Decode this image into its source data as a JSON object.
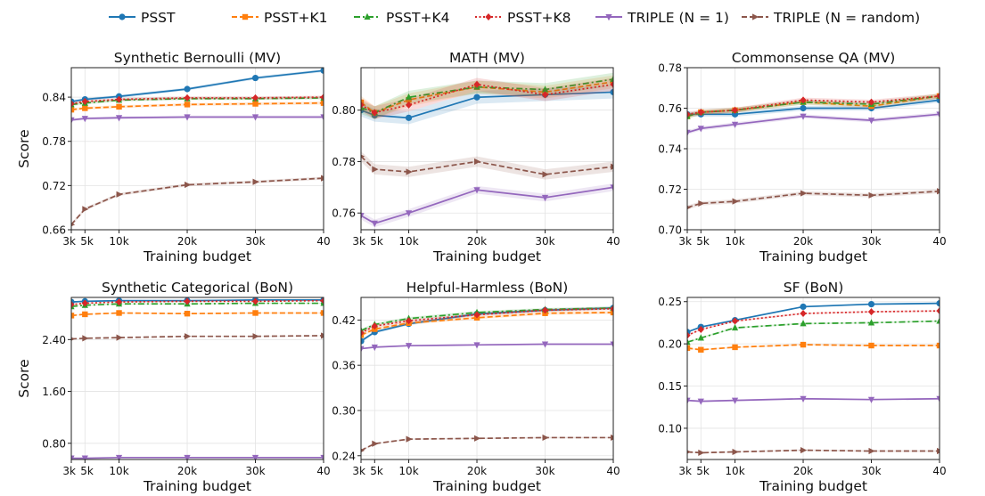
{
  "legend": [
    {
      "label": "PSST",
      "color": "#1f77b4",
      "dash": "solid",
      "marker": "circle"
    },
    {
      "label": "PSST+K1",
      "color": "#ff7f0e",
      "dash": "dashed",
      "marker": "square"
    },
    {
      "label": "PSST+K4",
      "color": "#2ca02c",
      "dash": "dashdot",
      "marker": "triangle-up"
    },
    {
      "label": "PSST+K8",
      "color": "#d62728",
      "dash": "dotted",
      "marker": "diamond"
    },
    {
      "label": "TRIPLE (N = 1)",
      "color": "#9467bd",
      "dash": "solid",
      "marker": "triangle-down"
    },
    {
      "label": "TRIPLE (N = random)",
      "color": "#8c564b",
      "dash": "dashed",
      "marker": "triangle-right"
    }
  ],
  "chart_data": [
    {
      "type": "line",
      "title": "Synthetic Bernoulli (MV)",
      "xlabel": "Training budget",
      "ylabel": "Score",
      "x": [
        3,
        5,
        10,
        20,
        30,
        40
      ],
      "xticks": [
        3,
        5,
        10,
        20,
        30,
        40
      ],
      "xticklabels": [
        "3k",
        "5k",
        "10k",
        "20k",
        "30k",
        "40"
      ],
      "xlim": [
        3,
        40
      ],
      "ylim": [
        0.66,
        0.88
      ],
      "yticks": [
        0.66,
        0.72,
        0.78,
        0.84
      ],
      "yticklabels": [
        "0.66",
        "0.72",
        "0.78",
        "0.84"
      ],
      "series": [
        {
          "name": "PSST",
          "values": [
            0.834,
            0.837,
            0.841,
            0.851,
            0.866,
            0.876
          ],
          "band": 0.002
        },
        {
          "name": "PSST+K1",
          "values": [
            0.823,
            0.825,
            0.827,
            0.83,
            0.831,
            0.832
          ],
          "band": 0.002
        },
        {
          "name": "PSST+K4",
          "values": [
            0.83,
            0.832,
            0.836,
            0.838,
            0.838,
            0.839
          ],
          "band": 0.002
        },
        {
          "name": "PSST+K8",
          "values": [
            0.831,
            0.834,
            0.837,
            0.839,
            0.839,
            0.84
          ],
          "band": 0.002
        },
        {
          "name": "TRIPLE (N = 1)",
          "values": [
            0.809,
            0.811,
            0.812,
            0.813,
            0.813,
            0.813
          ],
          "band": 0.002
        },
        {
          "name": "TRIPLE (N = random)",
          "values": [
            0.667,
            0.688,
            0.708,
            0.721,
            0.725,
            0.73
          ],
          "band": 0.002
        }
      ]
    },
    {
      "type": "line",
      "title": "MATH (MV)",
      "xlabel": "Training budget",
      "ylabel": "",
      "x": [
        3,
        5,
        10,
        20,
        30,
        40
      ],
      "xticks": [
        3,
        5,
        10,
        20,
        30,
        40
      ],
      "xticklabels": [
        "3k",
        "5k",
        "10k",
        "20k",
        "30k",
        "40"
      ],
      "xlim": [
        3,
        40
      ],
      "ylim": [
        0.7535,
        0.8165
      ],
      "yticks": [
        0.76,
        0.78,
        0.8
      ],
      "yticklabels": [
        "0.76",
        "0.78",
        "0.80"
      ],
      "series": [
        {
          "name": "PSST",
          "values": [
            0.8,
            0.798,
            0.797,
            0.805,
            0.806,
            0.807
          ],
          "band": 0.0025
        },
        {
          "name": "PSST+K1",
          "values": [
            0.803,
            0.799,
            0.804,
            0.809,
            0.807,
            0.811
          ],
          "band": 0.0025
        },
        {
          "name": "PSST+K4",
          "values": [
            0.801,
            0.799,
            0.805,
            0.809,
            0.808,
            0.812
          ],
          "band": 0.0025
        },
        {
          "name": "PSST+K8",
          "values": [
            0.802,
            0.799,
            0.802,
            0.81,
            0.806,
            0.81
          ],
          "band": 0.0025
        },
        {
          "name": "TRIPLE (N = 1)",
          "values": [
            0.759,
            0.756,
            0.76,
            0.769,
            0.766,
            0.77
          ],
          "band": 0.0015
        },
        {
          "name": "TRIPLE (N = random)",
          "values": [
            0.782,
            0.777,
            0.776,
            0.78,
            0.775,
            0.778
          ],
          "band": 0.002
        }
      ]
    },
    {
      "type": "line",
      "title": "Commonsense QA (MV)",
      "xlabel": "Training budget",
      "ylabel": "",
      "x": [
        3,
        5,
        10,
        20,
        30,
        40
      ],
      "xticks": [
        3,
        5,
        10,
        20,
        30,
        40
      ],
      "xticklabels": [
        "3k",
        "5k",
        "10k",
        "20k",
        "30k",
        "40"
      ],
      "xlim": [
        3,
        40
      ],
      "ylim": [
        0.7,
        0.78
      ],
      "yticks": [
        0.7,
        0.72,
        0.74,
        0.76,
        0.78
      ],
      "yticklabels": [
        "0.70",
        "0.72",
        "0.74",
        "0.76",
        "0.78"
      ],
      "series": [
        {
          "name": "PSST",
          "values": [
            0.757,
            0.757,
            0.757,
            0.76,
            0.76,
            0.764
          ],
          "band": 0.0012
        },
        {
          "name": "PSST+K1",
          "values": [
            0.756,
            0.758,
            0.759,
            0.763,
            0.761,
            0.766
          ],
          "band": 0.0012
        },
        {
          "name": "PSST+K4",
          "values": [
            0.756,
            0.758,
            0.759,
            0.763,
            0.762,
            0.766
          ],
          "band": 0.0012
        },
        {
          "name": "PSST+K8",
          "values": [
            0.757,
            0.758,
            0.759,
            0.764,
            0.763,
            0.766
          ],
          "band": 0.0012
        },
        {
          "name": "TRIPLE (N = 1)",
          "values": [
            0.748,
            0.75,
            0.752,
            0.756,
            0.754,
            0.757
          ],
          "band": 0.001
        },
        {
          "name": "TRIPLE (N = random)",
          "values": [
            0.711,
            0.713,
            0.714,
            0.718,
            0.717,
            0.719
          ],
          "band": 0.001
        }
      ]
    },
    {
      "type": "line",
      "title": "Synthetic Categorical (BoN)",
      "xlabel": "Training budget",
      "ylabel": "Score",
      "x": [
        3,
        5,
        10,
        20,
        30,
        40
      ],
      "xticks": [
        3,
        5,
        10,
        20,
        30,
        40
      ],
      "xticklabels": [
        "3k",
        "5k",
        "10k",
        "20k",
        "30k",
        "40"
      ],
      "xlim": [
        3,
        40
      ],
      "ylim": [
        0.55,
        3.05
      ],
      "yticks": [
        0.8,
        1.6,
        2.4
      ],
      "yticklabels": [
        "0.80",
        "1.60",
        "2.40"
      ],
      "series": [
        {
          "name": "PSST",
          "values": [
            2.98,
            2.99,
            3.0,
            3.0,
            3.01,
            3.01
          ],
          "band": 0.01
        },
        {
          "name": "PSST+K1",
          "values": [
            2.77,
            2.79,
            2.81,
            2.8,
            2.81,
            2.81
          ],
          "band": 0.01
        },
        {
          "name": "PSST+K4",
          "values": [
            2.91,
            2.93,
            2.95,
            2.95,
            2.96,
            2.96
          ],
          "band": 0.01
        },
        {
          "name": "PSST+K8",
          "values": [
            2.94,
            2.96,
            2.98,
            2.99,
            2.99,
            3.0
          ],
          "band": 0.01
        },
        {
          "name": "TRIPLE (N = 1)",
          "values": [
            0.57,
            0.57,
            0.58,
            0.58,
            0.58,
            0.58
          ],
          "band": 0.005
        },
        {
          "name": "TRIPLE (N = random)",
          "values": [
            2.41,
            2.42,
            2.43,
            2.45,
            2.45,
            2.46
          ],
          "band": 0.005
        }
      ]
    },
    {
      "type": "line",
      "title": "Helpful-Harmless (BoN)",
      "xlabel": "Training budget",
      "ylabel": "",
      "x": [
        3,
        5,
        10,
        20,
        30,
        40
      ],
      "xticks": [
        3,
        5,
        10,
        20,
        30,
        40
      ],
      "xticklabels": [
        "3k",
        "5k",
        "10k",
        "20k",
        "30k",
        "40"
      ],
      "xlim": [
        3,
        40
      ],
      "ylim": [
        0.235,
        0.45
      ],
      "yticks": [
        0.24,
        0.3,
        0.36,
        0.42
      ],
      "yticklabels": [
        "0.24",
        "0.30",
        "0.36",
        "0.42"
      ],
      "series": [
        {
          "name": "PSST",
          "values": [
            0.392,
            0.404,
            0.415,
            0.428,
            0.433,
            0.436
          ],
          "band": 0.002
        },
        {
          "name": "PSST+K1",
          "values": [
            0.4,
            0.408,
            0.416,
            0.423,
            0.429,
            0.43
          ],
          "band": 0.002
        },
        {
          "name": "PSST+K4",
          "values": [
            0.406,
            0.414,
            0.422,
            0.43,
            0.434,
            0.436
          ],
          "band": 0.002
        },
        {
          "name": "PSST+K8",
          "values": [
            0.403,
            0.412,
            0.419,
            0.427,
            0.433,
            0.435
          ],
          "band": 0.002
        },
        {
          "name": "TRIPLE (N = 1)",
          "values": [
            0.382,
            0.384,
            0.386,
            0.387,
            0.388,
            0.388
          ],
          "band": 0.001
        },
        {
          "name": "TRIPLE (N = random)",
          "values": [
            0.247,
            0.256,
            0.262,
            0.263,
            0.264,
            0.264
          ],
          "band": 0.001
        }
      ]
    },
    {
      "type": "line",
      "title": "SF (BoN)",
      "xlabel": "Training budget",
      "ylabel": "",
      "x": [
        3,
        5,
        10,
        20,
        30,
        40
      ],
      "xticks": [
        3,
        5,
        10,
        20,
        30,
        40
      ],
      "xticklabels": [
        "3k",
        "5k",
        "10k",
        "20k",
        "30k",
        "40"
      ],
      "xlim": [
        3,
        40
      ],
      "ylim": [
        0.063,
        0.255
      ],
      "yticks": [
        0.1,
        0.15,
        0.2,
        0.25
      ],
      "yticklabels": [
        "0.10",
        "0.15",
        "0.20",
        "0.25"
      ],
      "series": [
        {
          "name": "PSST",
          "values": [
            0.214,
            0.22,
            0.228,
            0.244,
            0.247,
            0.248
          ],
          "band": 0.001
        },
        {
          "name": "PSST+K1",
          "values": [
            0.195,
            0.193,
            0.196,
            0.199,
            0.198,
            0.198
          ],
          "band": 0.001
        },
        {
          "name": "PSST+K4",
          "values": [
            0.202,
            0.207,
            0.219,
            0.224,
            0.225,
            0.227
          ],
          "band": 0.001
        },
        {
          "name": "PSST+K8",
          "values": [
            0.21,
            0.217,
            0.227,
            0.236,
            0.238,
            0.239
          ],
          "band": 0.001
        },
        {
          "name": "TRIPLE (N = 1)",
          "values": [
            0.133,
            0.132,
            0.133,
            0.135,
            0.134,
            0.135
          ],
          "band": 0.001
        },
        {
          "name": "TRIPLE (N = random)",
          "values": [
            0.072,
            0.071,
            0.072,
            0.074,
            0.073,
            0.073
          ],
          "band": 0.001
        }
      ]
    }
  ]
}
